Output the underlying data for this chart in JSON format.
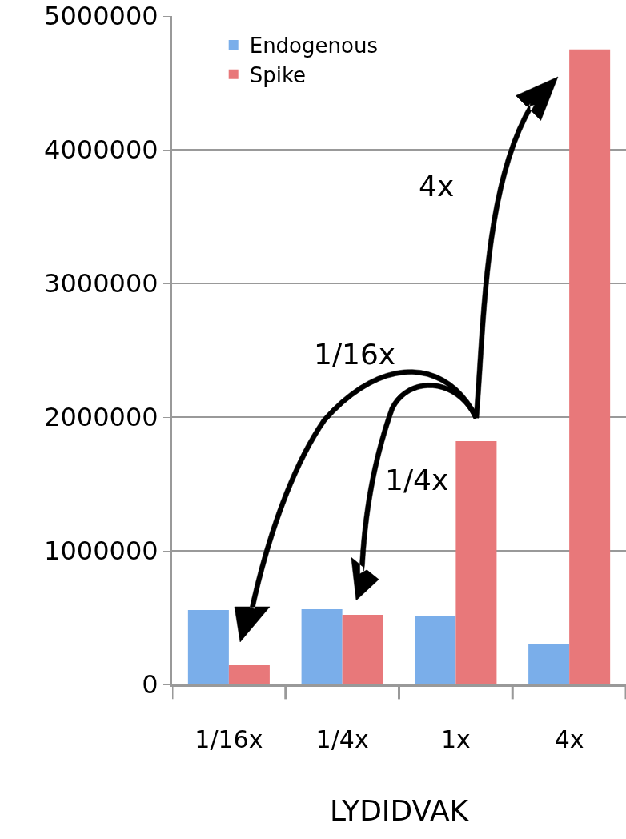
{
  "chart_data": {
    "type": "bar",
    "xlabel": "LYDIDVAK",
    "categories": [
      "1/16x",
      "1/4x",
      "1x",
      "4x"
    ],
    "series": [
      {
        "name": "Endogenous",
        "color": "#7aaeea",
        "values": [
          557000,
          563000,
          509000,
          305000
        ]
      },
      {
        "name": "Spike",
        "color": "#e8787a",
        "values": [
          144000,
          521000,
          1820000,
          4750000
        ]
      }
    ],
    "ylim": [
      0,
      5000000
    ],
    "yticks": [
      0,
      1000000,
      2000000,
      3000000,
      4000000,
      5000000
    ],
    "grid": "y",
    "legend": "top left",
    "annotations": [
      "4x",
      "1/16x",
      "1/4x"
    ]
  }
}
